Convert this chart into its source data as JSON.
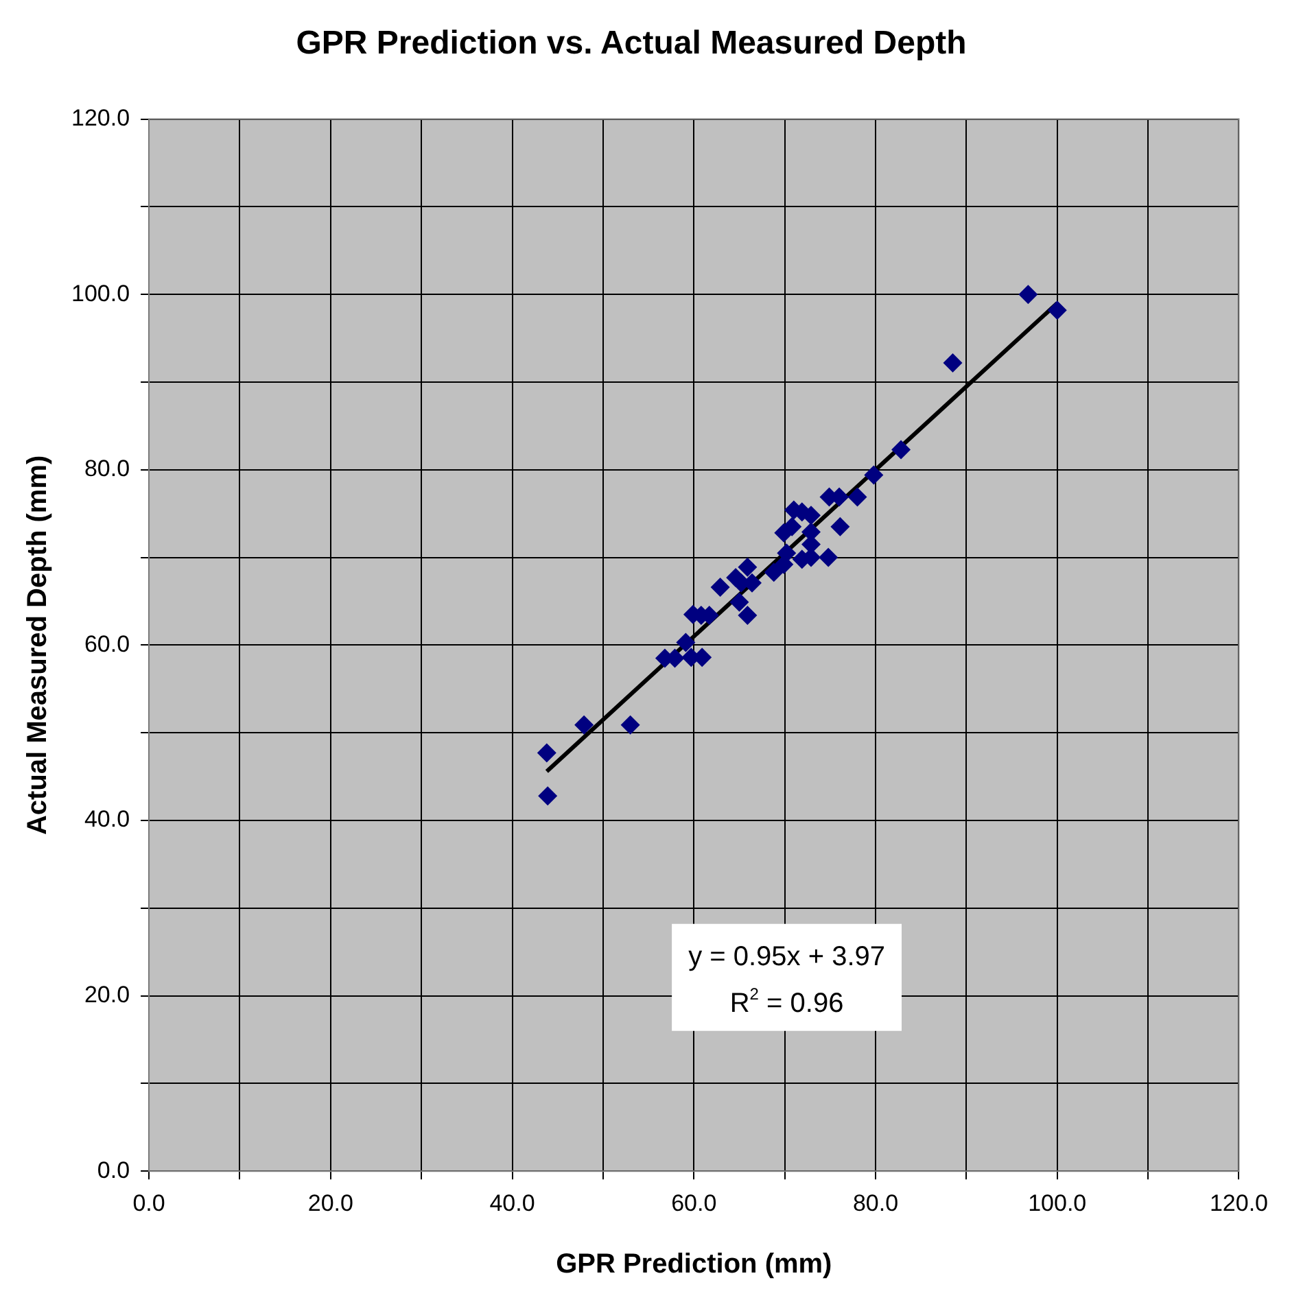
{
  "chart_data": {
    "type": "scatter",
    "title": "GPR Prediction vs. Actual Measured Depth",
    "xlabel": "GPR Prediction (mm)",
    "ylabel": "Actual Measured Depth (mm)",
    "xlim": [
      0,
      120
    ],
    "ylim": [
      0,
      120
    ],
    "xticks": [
      {
        "value": 0,
        "label": "0.0"
      },
      {
        "value": 10,
        "label": null
      },
      {
        "value": 20,
        "label": "20.0"
      },
      {
        "value": 30,
        "label": null
      },
      {
        "value": 40,
        "label": "40.0"
      },
      {
        "value": 50,
        "label": null
      },
      {
        "value": 60,
        "label": "60.0"
      },
      {
        "value": 70,
        "label": null
      },
      {
        "value": 80,
        "label": "80.0"
      },
      {
        "value": 90,
        "label": null
      },
      {
        "value": 100,
        "label": "100.0"
      },
      {
        "value": 110,
        "label": null
      },
      {
        "value": 120,
        "label": "120.0"
      }
    ],
    "yticks": [
      {
        "value": 0,
        "label": "0.0"
      },
      {
        "value": 10,
        "label": null
      },
      {
        "value": 20,
        "label": "20.0"
      },
      {
        "value": 30,
        "label": null
      },
      {
        "value": 40,
        "label": "40.0"
      },
      {
        "value": 50,
        "label": null
      },
      {
        "value": 60,
        "label": "60.0"
      },
      {
        "value": 70,
        "label": null
      },
      {
        "value": 80,
        "label": "80.0"
      },
      {
        "value": 90,
        "label": null
      },
      {
        "value": 100,
        "label": "100.0"
      },
      {
        "value": 110,
        "label": null
      },
      {
        "value": 120,
        "label": "120.0"
      }
    ],
    "grid": true,
    "legend": false,
    "marker": "diamond",
    "series": [
      {
        "type": "scatter",
        "color": "#000080",
        "x": [
          43.8,
          43.9,
          47.9,
          53.0,
          56.8,
          57.9,
          59.1,
          59.9,
          59.7,
          60.9,
          60.8,
          61.7,
          62.9,
          64.6,
          65.2,
          65.9,
          65.0,
          65.9,
          66.4,
          68.8,
          69.9,
          70.2,
          69.9,
          70.8,
          71.0,
          71.9,
          71.9,
          72.9,
          72.9,
          72.9,
          72.9,
          74.8,
          74.9,
          76.0,
          76.1,
          78.0,
          79.8,
          82.8,
          88.5,
          96.8,
          100.0
        ],
        "values": [
          47.7,
          42.8,
          50.9,
          50.9,
          58.5,
          58.5,
          60.3,
          63.5,
          58.6,
          58.6,
          63.4,
          63.4,
          66.6,
          67.7,
          67.1,
          68.9,
          64.9,
          63.4,
          67.1,
          68.3,
          69.2,
          70.5,
          72.8,
          73.5,
          75.4,
          75.2,
          69.8,
          70.0,
          71.5,
          72.9,
          74.8,
          70.0,
          76.9,
          76.9,
          73.5,
          76.9,
          79.4,
          82.3,
          92.2,
          100.0,
          98.2
        ]
      },
      {
        "type": "line",
        "color": "#000000",
        "x": [
          43.8,
          100.0
        ],
        "values": [
          45.6,
          99.0
        ],
        "marker": "none",
        "line_style": "solid"
      }
    ],
    "annotations": [
      "y = 0.95x + 3.97",
      "R$^{2}$ = 0.96"
    ]
  }
}
